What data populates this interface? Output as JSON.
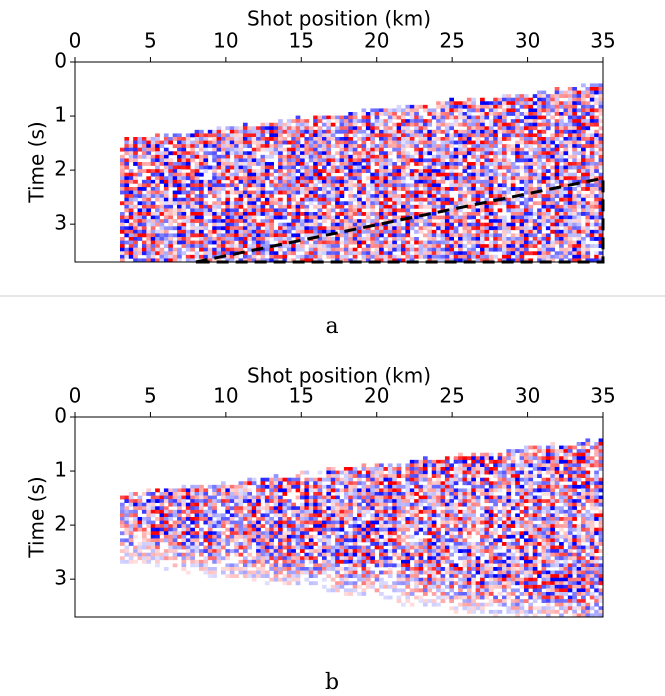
{
  "chart_data": [
    {
      "type": "image",
      "xlabel": "Shot position (km)",
      "ylabel": "Time (s)",
      "caption": "a",
      "xlim": [
        0,
        35
      ],
      "ylim": [
        3.7,
        0
      ],
      "xticks": [
        0,
        5,
        10,
        15,
        20,
        25,
        30,
        35
      ],
      "yticks": [
        0,
        1,
        2,
        3
      ],
      "colors": [
        "#0000ff",
        "#ffffff",
        "#ff0000"
      ],
      "dashed_region": {
        "x": [
          8,
          35,
          35
        ],
        "y": [
          3.7,
          2.15,
          3.7
        ]
      }
    },
    {
      "type": "image",
      "xlabel": "Shot position (km)",
      "ylabel": "Time (s)",
      "caption": "b",
      "xlim": [
        0,
        35
      ],
      "ylim": [
        3.7,
        0
      ],
      "xticks": [
        0,
        5,
        10,
        15,
        20,
        25,
        30,
        35
      ],
      "yticks": [
        0,
        1,
        2,
        3
      ],
      "colors": [
        "#0000ff",
        "#ffffff",
        "#ff0000"
      ]
    }
  ]
}
